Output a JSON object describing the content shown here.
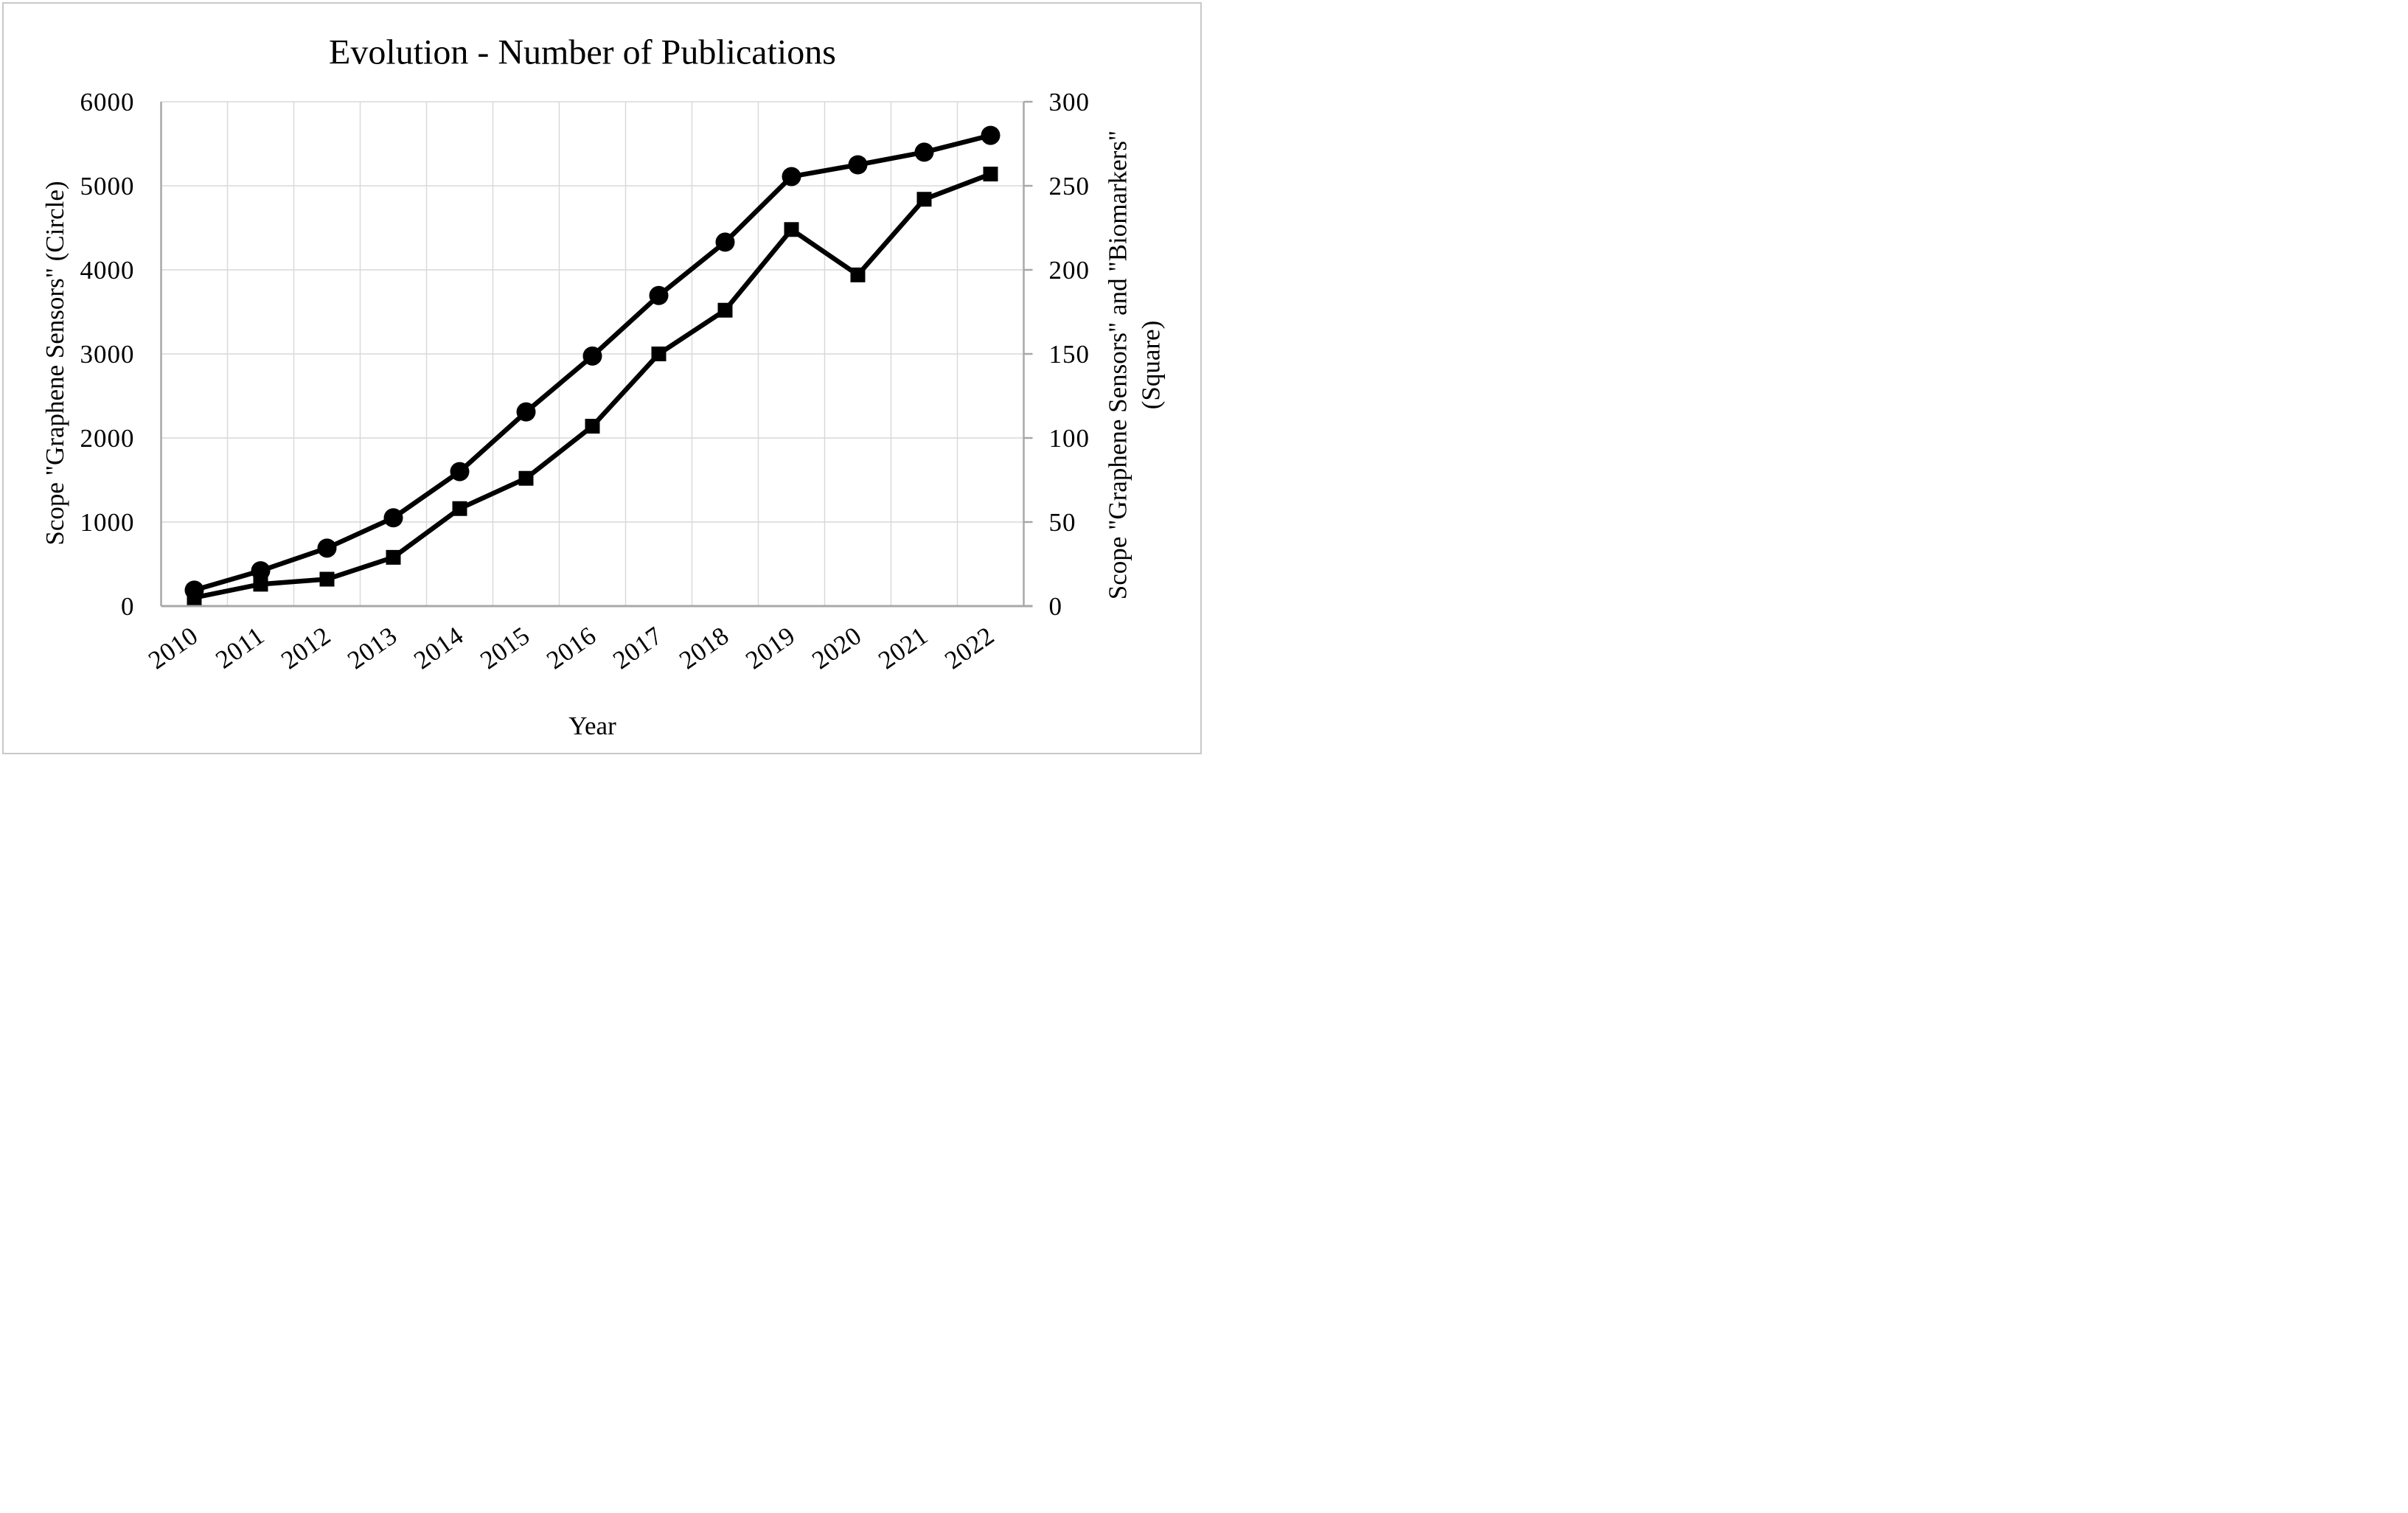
{
  "figure": {
    "title": "Evolution - Number of Publications",
    "x_axis": {
      "label": "Year"
    },
    "y_axis_left": {
      "label": "Scope \"Graphene Sensors\" (Circle)"
    },
    "y_axis_right": {
      "label_line1": "Scope \"Graphene Sensors\" and \"Biomarkers\"",
      "label_line2": "(Square)"
    }
  },
  "chart_data": {
    "type": "line",
    "title": "Evolution - Number of Publications",
    "xlabel": "Year",
    "ylabel_left": "Scope \"Graphene Sensors\" (Circle)",
    "ylabel_right": "Scope \"Graphene Sensors\" and \"Biomarkers\" (Square)",
    "categories": [
      "2010",
      "2011",
      "2012",
      "2013",
      "2014",
      "2015",
      "2016",
      "2017",
      "2018",
      "2019",
      "2020",
      "2021",
      "2022"
    ],
    "series": [
      {
        "name": "Scope \"Graphene Sensors\"",
        "marker": "circle",
        "axis": "left",
        "color": "#000000",
        "values": [
          190,
          420,
          690,
          1050,
          1600,
          2310,
          2975,
          3695,
          4330,
          5110,
          5250,
          5400,
          5600
        ]
      },
      {
        "name": "Scope \"Graphene Sensors\" and \"Biomarkers\"",
        "marker": "square",
        "axis": "right",
        "color": "#000000",
        "values": [
          5,
          13,
          16,
          29,
          58,
          76,
          107,
          150,
          176,
          224,
          197,
          242,
          257
        ]
      }
    ],
    "y_left": {
      "min": 0,
      "max": 6000,
      "tick_step": 1000,
      "ticks": [
        0,
        1000,
        2000,
        3000,
        4000,
        5000,
        6000
      ]
    },
    "y_right": {
      "min": 0,
      "max": 300,
      "tick_step": 50,
      "ticks": [
        0,
        50,
        100,
        150,
        200,
        250,
        300
      ]
    },
    "x_tick_rotation_deg": -35,
    "grid": true,
    "legend": "none"
  },
  "colors": {
    "series": "#000000",
    "gridline": "#d9d9d9",
    "axis": "#a8a8a8",
    "border": "#c8c8c8",
    "text": "#000000",
    "background": "#ffffff"
  }
}
